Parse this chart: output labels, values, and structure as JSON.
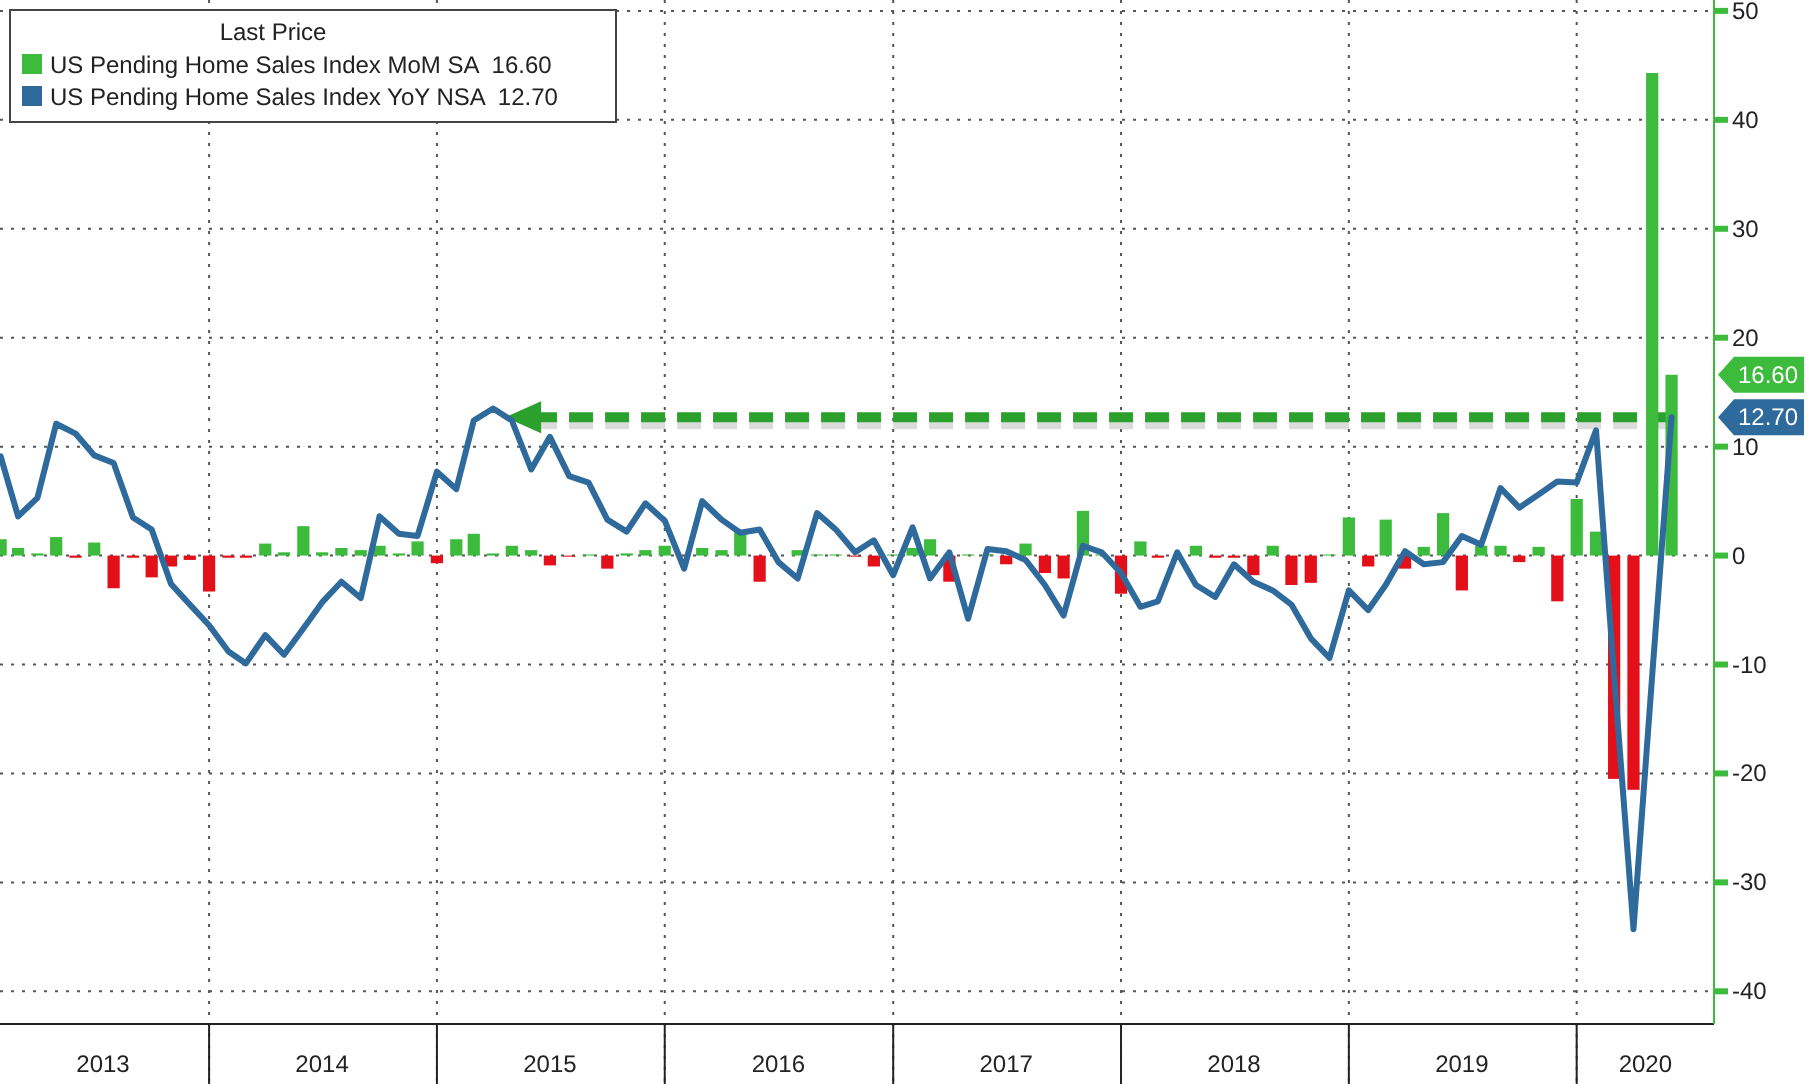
{
  "chart_data": {
    "type": "bar",
    "legend_title": "Last Price",
    "x": [
      "2013-02",
      "2013-03",
      "2013-04",
      "2013-05",
      "2013-06",
      "2013-07",
      "2013-08",
      "2013-09",
      "2013-10",
      "2013-11",
      "2013-12",
      "2014-01",
      "2014-02",
      "2014-03",
      "2014-04",
      "2014-05",
      "2014-06",
      "2014-07",
      "2014-08",
      "2014-09",
      "2014-10",
      "2014-11",
      "2014-12",
      "2015-01",
      "2015-02",
      "2015-03",
      "2015-04",
      "2015-05",
      "2015-06",
      "2015-07",
      "2015-08",
      "2015-09",
      "2015-10",
      "2015-11",
      "2015-12",
      "2016-01",
      "2016-02",
      "2016-03",
      "2016-04",
      "2016-05",
      "2016-06",
      "2016-07",
      "2016-08",
      "2016-09",
      "2016-10",
      "2016-11",
      "2016-12",
      "2017-01",
      "2017-02",
      "2017-03",
      "2017-04",
      "2017-05",
      "2017-06",
      "2017-07",
      "2017-08",
      "2017-09",
      "2017-10",
      "2017-11",
      "2017-12",
      "2018-01",
      "2018-02",
      "2018-03",
      "2018-04",
      "2018-05",
      "2018-06",
      "2018-07",
      "2018-08",
      "2018-09",
      "2018-10",
      "2018-11",
      "2018-12",
      "2019-01",
      "2019-02",
      "2019-03",
      "2019-04",
      "2019-05",
      "2019-06",
      "2019-07",
      "2019-08",
      "2019-09",
      "2019-10",
      "2019-11",
      "2019-12",
      "2020-01",
      "2020-02",
      "2020-03",
      "2020-04",
      "2020-05",
      "2020-06"
    ],
    "series": [
      {
        "name": "US Pending Home Sales Index MoM SA  16.60",
        "color": "#3dbb3d",
        "values": [
          1.5,
          0.7,
          0.2,
          1.7,
          -0.2,
          1.2,
          -3.0,
          -0.2,
          -2.0,
          -1.0,
          -0.4,
          -3.3,
          -0.2,
          -0.2,
          1.1,
          0.3,
          2.7,
          0.3,
          0.7,
          0.5,
          0.9,
          0.2,
          1.3,
          -0.7,
          1.5,
          2.0,
          0.2,
          0.9,
          0.5,
          -0.9,
          -0.1,
          0.1,
          -1.2,
          0.2,
          0.5,
          0.9,
          null,
          0.7,
          0.5,
          2.2,
          -2.4,
          null,
          0.5,
          0.1,
          0.1,
          -0.1,
          -1.0,
          0.1,
          0.7,
          1.5,
          -2.4,
          0.1,
          0.1,
          -0.8,
          1.1,
          -1.6,
          -2.1,
          4.1,
          0.1,
          -3.5,
          1.3,
          -0.2,
          null,
          0.9,
          -0.2,
          -0.2,
          -1.8,
          0.9,
          -2.7,
          -2.5,
          0.1,
          3.5,
          -1.0,
          3.3,
          -1.2,
          0.8,
          3.9,
          -3.2,
          0.9,
          0.9,
          -0.6,
          0.8,
          -4.2,
          5.2,
          2.2,
          -20.5,
          -21.5,
          44.3,
          16.6
        ],
        "colors": [
          "#3dbb3d",
          "#3dbb3d",
          "#3dbb3d",
          "#3dbb3d",
          "#e3101a",
          "#3dbb3d",
          "#e3101a",
          "#e3101a",
          "#e3101a",
          "#e3101a",
          "#e3101a",
          "#e3101a",
          "#e3101a",
          "#e3101a",
          "#3dbb3d",
          "#3dbb3d",
          "#3dbb3d",
          "#3dbb3d",
          "#3dbb3d",
          "#3dbb3d",
          "#3dbb3d",
          "#3dbb3d",
          "#3dbb3d",
          "#e3101a",
          "#3dbb3d",
          "#3dbb3d",
          "#3dbb3d",
          "#3dbb3d",
          "#3dbb3d",
          "#e3101a",
          "#e3101a",
          "#3dbb3d",
          "#e3101a",
          "#3dbb3d",
          "#3dbb3d",
          "#3dbb3d",
          "#3dbb3d",
          "#3dbb3d",
          "#3dbb3d",
          "#3dbb3d",
          "#e3101a",
          "#e3101a",
          "#3dbb3d",
          "#3dbb3d",
          "#3dbb3d",
          "#e3101a",
          "#e3101a",
          "#3dbb3d",
          "#3dbb3d",
          "#3dbb3d",
          "#e3101a",
          "#3dbb3d",
          "#3dbb3d",
          "#e3101a",
          "#3dbb3d",
          "#e3101a",
          "#e3101a",
          "#3dbb3d",
          "#3dbb3d",
          "#e3101a",
          "#3dbb3d",
          "#e3101a",
          "#e3101a",
          "#3dbb3d",
          "#e3101a",
          "#e3101a",
          "#e3101a",
          "#3dbb3d",
          "#e3101a",
          "#e3101a",
          "#3dbb3d",
          "#3dbb3d",
          "#e3101a",
          "#3dbb3d",
          "#e3101a",
          "#3dbb3d",
          "#3dbb3d",
          "#e3101a",
          "#3dbb3d",
          "#3dbb3d",
          "#e3101a",
          "#3dbb3d",
          "#e3101a",
          "#3dbb3d",
          "#3dbb3d",
          "#e3101a",
          "#e3101a",
          "#3dbb3d",
          "#3dbb3d"
        ]
      },
      {
        "type": "line",
        "name": "US Pending Home Sales Index YoY NSA  12.70",
        "color": "#2f6a9c",
        "values": [
          9.1,
          3.6,
          5.3,
          12.1,
          11.2,
          9.2,
          8.5,
          3.5,
          2.4,
          -2.6,
          -4.5,
          -6.4,
          -8.8,
          -9.9,
          -7.3,
          -9.1,
          -6.7,
          -4.3,
          -2.4,
          -3.9,
          3.6,
          2.0,
          1.8,
          7.7,
          6.1,
          12.4,
          13.5,
          12.4,
          7.9,
          10.9,
          7.3,
          6.7,
          3.3,
          2.2,
          4.8,
          3.2,
          -1.2,
          5.0,
          3.3,
          2.1,
          2.4,
          -0.6,
          -2.1,
          3.9,
          2.4,
          0.3,
          1.4,
          -1.8,
          2.6,
          -2.1,
          0.3,
          -5.8,
          0.6,
          0.4,
          -0.4,
          -2.7,
          -5.5,
          0.9,
          0.3,
          -1.6,
          -4.7,
          -4.2,
          0.3,
          -2.7,
          -3.8,
          -0.8,
          -2.4,
          -3.2,
          -4.5,
          -7.6,
          -9.4,
          -3.2,
          -5.0,
          -2.7,
          0.4,
          -0.8,
          -0.6,
          1.8,
          1.0,
          6.2,
          4.4,
          5.6,
          6.8,
          6.7,
          11.5,
          -11,
          -34.3,
          -11,
          12.7
        ]
      }
    ],
    "xlim": [
      "2013-01-31",
      "2020-08-08"
    ],
    "xticks": [
      {
        "value": "2013-07-15",
        "label": "2013"
      },
      {
        "value": "2014-01-01",
        "label": null
      },
      {
        "value": "2014-07-01",
        "label": "2014"
      },
      {
        "value": "2015-01-01",
        "label": null
      },
      {
        "value": "2015-07-01",
        "label": "2015"
      },
      {
        "value": "2016-01-01",
        "label": null
      },
      {
        "value": "2016-07-01",
        "label": "2016"
      },
      {
        "value": "2017-01-01",
        "label": null
      },
      {
        "value": "2017-07-01",
        "label": "2017"
      },
      {
        "value": "2018-01-01",
        "label": null
      },
      {
        "value": "2018-07-01",
        "label": "2018"
      },
      {
        "value": "2019-01-01",
        "label": null
      },
      {
        "value": "2019-07-01",
        "label": "2019"
      },
      {
        "value": "2020-01-01",
        "label": null
      },
      {
        "value": "2020-04-20",
        "label": "2020"
      }
    ],
    "ylim": [
      -43,
      51
    ],
    "yticks": [
      -40,
      -30,
      -20,
      -10,
      0,
      10,
      20,
      30,
      40,
      50
    ],
    "ref_lines": [
      {
        "axis": "y",
        "value": 12.7,
        "color": "#2ca02c",
        "line_style": "dashed"
      }
    ],
    "annotations": [
      "16.60",
      "12.70"
    ],
    "grid": true,
    "legend": "top left"
  }
}
